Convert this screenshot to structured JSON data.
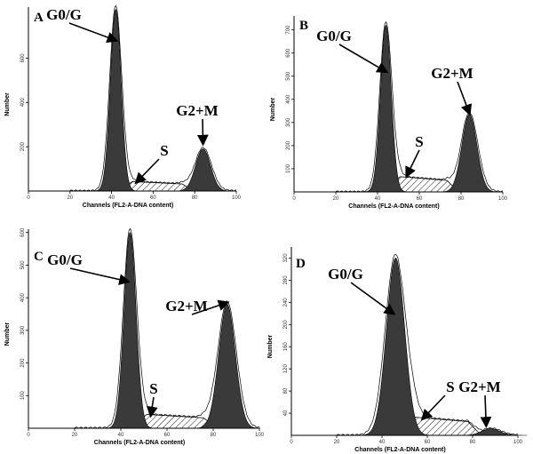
{
  "chart_data": [
    {
      "type": "area",
      "panel": "A",
      "xlabel": "Channels (FL2-A-DNA  content)",
      "ylabel": "Number",
      "xlim": [
        0,
        100
      ],
      "ylim": [
        0,
        830
      ],
      "xticks": [
        "0",
        "20",
        "40",
        "60",
        "80",
        "100"
      ],
      "yticks": [
        {
          "value": 200,
          "label": "200"
        },
        {
          "value": 400,
          "label": "400"
        },
        {
          "value": 600,
          "label": "600"
        }
      ],
      "series": [
        {
          "type": "peak",
          "center": 42,
          "sigma": 2.6,
          "height": 820
        },
        {
          "type": "peak",
          "center": 84,
          "sigma": 3.6,
          "height": 190
        },
        {
          "type": "s_phase",
          "start": 44,
          "end": 80,
          "height": 45
        }
      ],
      "annotations": [
        {
          "text": "G0/G",
          "target_x": 42,
          "target_y": 680
        },
        {
          "text": "S",
          "target_x": 52,
          "target_y": 40
        },
        {
          "text": "G2+M",
          "target_x": 84,
          "target_y": 215
        }
      ]
    },
    {
      "type": "area",
      "panel": "B",
      "xlabel": "Channels (FL2-A-DNA  content)",
      "ylabel": "Number",
      "xlim": [
        0,
        100
      ],
      "ylim": [
        0,
        760
      ],
      "xticks": [
        "0",
        "20",
        "40",
        "60",
        "80",
        "100"
      ],
      "yticks": [
        {
          "value": 100,
          "label": "100"
        },
        {
          "value": 200,
          "label": "200"
        },
        {
          "value": 300,
          "label": "300"
        },
        {
          "value": 400,
          "label": "400"
        },
        {
          "value": 500,
          "label": "500"
        },
        {
          "value": 600,
          "label": "600"
        },
        {
          "value": 700,
          "label": "700"
        }
      ],
      "series": [
        {
          "type": "peak",
          "center": 44,
          "sigma": 2.6,
          "height": 720
        },
        {
          "type": "peak",
          "center": 84,
          "sigma": 3.6,
          "height": 335
        },
        {
          "type": "s_phase",
          "start": 45,
          "end": 79,
          "height": 70
        }
      ],
      "annotations": [
        {
          "text": "G0/G",
          "target_x": 44,
          "target_y": 520
        },
        {
          "text": "S",
          "target_x": 54,
          "target_y": 70
        },
        {
          "text": "G2+M",
          "target_x": 84,
          "target_y": 340
        }
      ]
    },
    {
      "type": "area",
      "panel": "C",
      "xlabel": "Channels (FL2-A-DNA  content)",
      "ylabel": "Number",
      "xlim": [
        0,
        100
      ],
      "ylim": [
        0,
        610
      ],
      "xticks": [
        "0",
        "20",
        "40",
        "60",
        "80",
        "100"
      ],
      "yticks": [
        {
          "value": 100,
          "label": "100"
        },
        {
          "value": 200,
          "label": "200"
        },
        {
          "value": 300,
          "label": "300"
        },
        {
          "value": 400,
          "label": "400"
        },
        {
          "value": 500,
          "label": "500"
        },
        {
          "value": 600,
          "label": "600"
        }
      ],
      "series": [
        {
          "type": "peak",
          "center": 44,
          "sigma": 2.6,
          "height": 600
        },
        {
          "type": "peak",
          "center": 86,
          "sigma": 3.6,
          "height": 380
        },
        {
          "type": "s_phase",
          "start": 45,
          "end": 82,
          "height": 45
        }
      ],
      "annotations": [
        {
          "text": "G0/G",
          "target_x": 43,
          "target_y": 450
        },
        {
          "text": "S",
          "target_x": 53,
          "target_y": 40
        },
        {
          "text": "G2+M",
          "target_x": 86,
          "target_y": 385
        }
      ]
    },
    {
      "type": "area",
      "panel": "D",
      "xlabel": "Channels (FL2-A-DNA  content)",
      "ylabel": "Number",
      "xlim": [
        0,
        100
      ],
      "ylim": [
        0,
        340
      ],
      "xticks": [
        "0",
        "20",
        "40",
        "60",
        "80",
        "100"
      ],
      "yticks": [
        {
          "value": 40,
          "label": "40"
        },
        {
          "value": 80,
          "label": "80"
        },
        {
          "value": 120,
          "label": "120"
        },
        {
          "value": 160,
          "label": "160"
        },
        {
          "value": 200,
          "label": "200"
        },
        {
          "value": 240,
          "label": "240"
        },
        {
          "value": 280,
          "label": "280"
        },
        {
          "value": 320,
          "label": "320"
        }
      ],
      "series": [
        {
          "type": "peak",
          "center": 46,
          "sigma": 4.0,
          "height": 320
        },
        {
          "type": "peak",
          "center": 88,
          "sigma": 4.0,
          "height": 12
        },
        {
          "type": "s_phase",
          "start": 48,
          "end": 84,
          "height": 35
        }
      ],
      "annotations": [
        {
          "text": "G0/G",
          "target_x": 45,
          "target_y": 220
        },
        {
          "text": "S",
          "target_x": 58,
          "target_y": 30
        },
        {
          "text": "G2+M",
          "target_x": 86,
          "target_y": 18
        }
      ]
    }
  ]
}
